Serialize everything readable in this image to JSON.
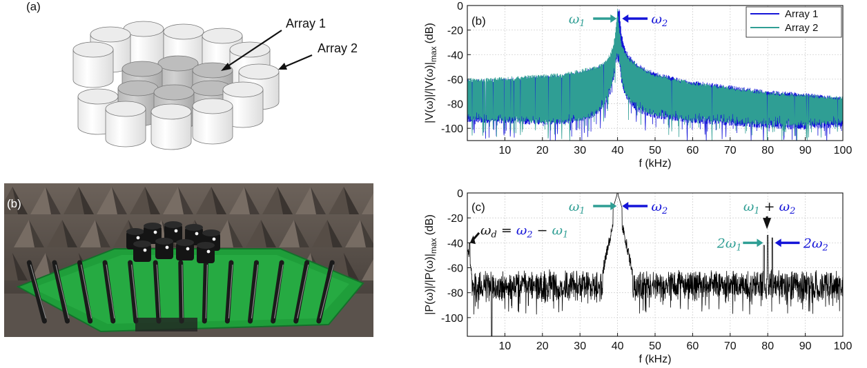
{
  "panel_a": {
    "label": "(a)",
    "array1_label": "Array 1",
    "array2_label": "Array 2"
  },
  "panel_photo": {
    "label": "(b)"
  },
  "colors": {
    "array1": "#1414d8",
    "array2": "#2f9e94",
    "spectrum_c": "#000000",
    "photo_board": "#1f9e3a"
  },
  "chart_data": [
    {
      "type": "line",
      "panel_label": "(b)",
      "xlabel": "f (kHz)",
      "ylabel": "|V(ω)|/|V(ω)|",
      "ylabel_sub": "max",
      "ylabel_unit": "(dB)",
      "xlim": [
        0,
        100
      ],
      "ylim": [
        -110,
        0
      ],
      "xticks": [
        10,
        20,
        30,
        40,
        50,
        60,
        70,
        80,
        90,
        100
      ],
      "yticks": [
        0,
        -20,
        -40,
        -60,
        -80,
        -100
      ],
      "grid": true,
      "legend_position": "top-right",
      "series": [
        {
          "name": "Array 1",
          "color": "#1414d8",
          "envelope_x": [
            0,
            5,
            10,
            15,
            20,
            25,
            30,
            33,
            35,
            37,
            38,
            39,
            39.5,
            40,
            40.5,
            41,
            42,
            43,
            45,
            47,
            50,
            55,
            60,
            65,
            70,
            75,
            80,
            85,
            90,
            95,
            100
          ],
          "upper": [
            -60,
            -60,
            -59,
            -58,
            -57,
            -56,
            -53,
            -51,
            -49,
            -45,
            -41,
            -33,
            -25,
            -5,
            -1,
            -22,
            -34,
            -40,
            -46,
            -50,
            -54,
            -58,
            -61,
            -63,
            -65,
            -67,
            -69,
            -70,
            -71,
            -73,
            -74
          ],
          "lower": [
            -95,
            -96,
            -96,
            -97,
            -97,
            -97,
            -95,
            -92,
            -88,
            -80,
            -72,
            -60,
            -50,
            -45,
            -50,
            -62,
            -74,
            -80,
            -86,
            -89,
            -92,
            -94,
            -96,
            -97,
            -98,
            -99,
            -100,
            -101,
            -101,
            -100,
            -99
          ]
        },
        {
          "name": "Array 2",
          "color": "#2f9e94",
          "envelope_x": [
            0,
            5,
            10,
            15,
            20,
            25,
            30,
            33,
            35,
            37,
            38,
            39,
            39.5,
            40,
            40.5,
            41,
            42,
            43,
            45,
            47,
            50,
            55,
            60,
            65,
            70,
            75,
            80,
            85,
            90,
            95,
            100
          ],
          "upper": [
            -59,
            -59,
            -58,
            -57,
            -56,
            -55,
            -52,
            -50,
            -48,
            -44,
            -39,
            -30,
            -20,
            -2,
            -18,
            -30,
            -37,
            -42,
            -47,
            -51,
            -55,
            -59,
            -62,
            -64,
            -66,
            -68,
            -70,
            -71,
            -72,
            -73,
            -74
          ],
          "lower": [
            -93,
            -94,
            -95,
            -95,
            -96,
            -96,
            -94,
            -91,
            -87,
            -79,
            -70,
            -58,
            -48,
            -42,
            -48,
            -60,
            -72,
            -78,
            -84,
            -87,
            -90,
            -92,
            -94,
            -95,
            -96,
            -97,
            -97,
            -98,
            -98,
            -97,
            -96
          ]
        }
      ],
      "annotations": [
        {
          "text": "ω",
          "sub": "1",
          "x": 40,
          "y": -2,
          "color": "#2f9e94",
          "arrow": "right"
        },
        {
          "text": "ω",
          "sub": "2",
          "x": 41,
          "y": -2,
          "color": "#1414d8",
          "arrow": "left"
        }
      ]
    },
    {
      "type": "line",
      "panel_label": "(c)",
      "xlabel": "f (kHz)",
      "ylabel": "|P(ω)|/|P(ω)|",
      "ylabel_sub": "max",
      "ylabel_unit": "(dB)",
      "xlim": [
        0,
        100
      ],
      "ylim": [
        -115,
        0
      ],
      "xticks": [
        10,
        20,
        30,
        40,
        50,
        60,
        70,
        80,
        90,
        100
      ],
      "yticks": [
        0,
        -20,
        -40,
        -60,
        -80,
        -100
      ],
      "grid": true,
      "series": [
        {
          "color": "#000000",
          "baseline": -75,
          "noise_range": [
            -88,
            -62
          ],
          "peaks": [
            {
              "x": 0.6,
              "y": -40
            },
            {
              "x": 6.5,
              "y": -118
            },
            {
              "x": 40,
              "y": 0
            },
            {
              "x": 80,
              "y": -34
            },
            {
              "x": 81.2,
              "y": -36
            },
            {
              "x": 79,
              "y": -42
            }
          ]
        }
      ],
      "annotations": [
        {
          "id": "w1",
          "text": "ω",
          "sub": "1",
          "color": "#2f9e94"
        },
        {
          "id": "w2",
          "text": "ω",
          "sub": "2",
          "color": "#1414d8"
        },
        {
          "id": "wd",
          "text": "ω",
          "sub": "d",
          "eq": "=",
          "rhs_a": "ω",
          "rhs_a_sub": "2",
          "minus": "−",
          "rhs_b": "ω",
          "rhs_b_sub": "1"
        },
        {
          "id": "w1w2",
          "text_a": "ω",
          "sub_a": "1",
          "plus": "+",
          "text_b": "ω",
          "sub_b": "2"
        },
        {
          "id": "2w1",
          "text": "2ω",
          "sub": "1",
          "color": "#2f9e94"
        },
        {
          "id": "2w2",
          "text": "2ω",
          "sub": "2",
          "color": "#1414d8"
        }
      ]
    }
  ]
}
